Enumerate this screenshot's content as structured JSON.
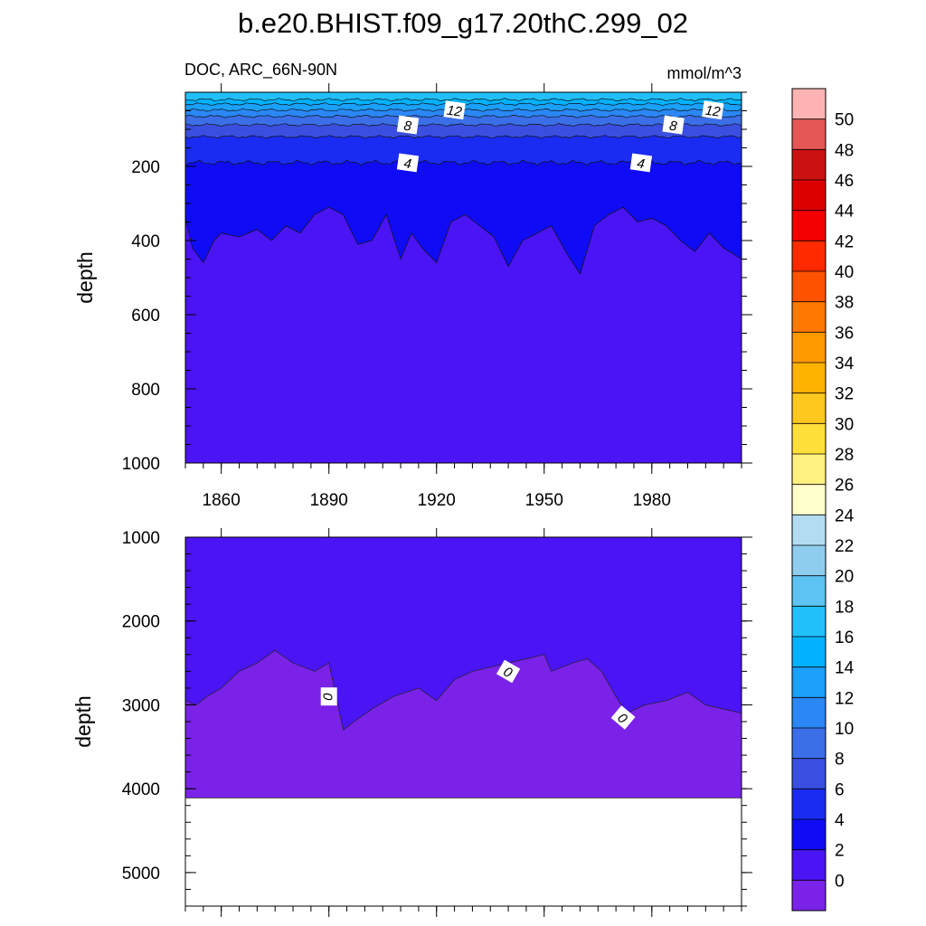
{
  "title": "b.e20.BHIST.f09_g17.20thC.299_02",
  "subtitle_left": "DOC, ARC_66N-90N",
  "subtitle_right": "mmol/m^3",
  "top_panel": {
    "ylabel": "depth",
    "ytick_labels": [
      "200",
      "400",
      "600",
      "800",
      "1000"
    ],
    "xtick_labels": [
      "1860",
      "1890",
      "1920",
      "1950",
      "1980"
    ],
    "contour_labels": [
      "12",
      "12",
      "8",
      "8",
      "4",
      "4"
    ]
  },
  "bottom_panel": {
    "ylabel": "depth",
    "ytick_labels": [
      "1000",
      "2000",
      "3000",
      "4000",
      "5000"
    ],
    "contour_labels": [
      "0",
      "0",
      "0"
    ]
  },
  "colorbar": {
    "labels": [
      "50",
      "48",
      "46",
      "44",
      "42",
      "40",
      "38",
      "36",
      "34",
      "32",
      "30",
      "28",
      "26",
      "24",
      "22",
      "20",
      "18",
      "16",
      "14",
      "12",
      "10",
      "8",
      "6",
      "4",
      "2",
      "0"
    ],
    "colors": [
      "#fdb3b3",
      "#e45757",
      "#cc1111",
      "#dd0000",
      "#f50000",
      "#ff2a00",
      "#ff5200",
      "#ff7800",
      "#ff9900",
      "#ffb300",
      "#ffc81e",
      "#ffe03a",
      "#fff080",
      "#ffffcc",
      "#b3dcf2",
      "#8fcdee",
      "#5cc3f2",
      "#22c0fa",
      "#00b2ff",
      "#1ba0fb",
      "#2a87f5",
      "#3b6fe8",
      "#3a4fe0",
      "#1a2cf2",
      "#0f0cf5",
      "#4a14f5",
      "#7a22e8"
    ]
  },
  "chart_data": [
    {
      "type": "heatmap",
      "title": "b.e20.BHIST.f09_g17.20thC.299_02",
      "subtitle": "DOC, ARC_66N-90N",
      "units": "mmol/m^3",
      "xlabel": "",
      "ylabel": "depth",
      "xlim": [
        1850,
        2005
      ],
      "ylim": [
        1000,
        0
      ],
      "x_ticks": [
        1860,
        1890,
        1920,
        1950,
        1980
      ],
      "y_ticks": [
        200,
        400,
        600,
        800,
        1000
      ],
      "contour_levels": [
        0,
        2,
        4,
        6,
        8,
        10,
        12,
        14,
        16
      ],
      "contour_depths": {
        "16": 20,
        "14": 32,
        "12": 48,
        "10": 65,
        "8": 88,
        "6": 120,
        "4": 190,
        "2": "~310-480"
      },
      "contour_2_depth_x": [
        1850,
        1852,
        1855,
        1858,
        1860,
        1865,
        1870,
        1874,
        1878,
        1882,
        1886,
        1890,
        1894,
        1898,
        1902,
        1906,
        1910,
        1913,
        1916,
        1920,
        1924,
        1928,
        1932,
        1936,
        1940,
        1944,
        1948,
        1952,
        1956,
        1960,
        1964,
        1968,
        1972,
        1976,
        1980,
        1984,
        1988,
        1992,
        1996,
        2000,
        2005
      ],
      "contour_2_depth_y": [
        340,
        420,
        460,
        400,
        380,
        390,
        370,
        400,
        360,
        380,
        330,
        310,
        330,
        410,
        400,
        330,
        450,
        380,
        420,
        460,
        350,
        330,
        360,
        390,
        470,
        400,
        380,
        360,
        430,
        490,
        360,
        330,
        310,
        350,
        340,
        360,
        400,
        430,
        380,
        420,
        450
      ]
    },
    {
      "type": "heatmap",
      "xlabel": "",
      "ylabel": "depth",
      "xlim": [
        1850,
        2005
      ],
      "ylim": [
        5400,
        1000
      ],
      "y_ticks": [
        1000,
        2000,
        3000,
        4000,
        5000
      ],
      "contour_levels": [
        0
      ],
      "data_bottom_depth": 4110,
      "contour_0_depth_x": [
        1850,
        1853,
        1856,
        1860,
        1865,
        1870,
        1875,
        1880,
        1883,
        1886,
        1890,
        1892,
        1894,
        1897,
        1902,
        1908,
        1915,
        1920,
        1925,
        1930,
        1935,
        1940,
        1945,
        1950,
        1952,
        1958,
        1962,
        1966,
        1970,
        1973,
        1978,
        1984,
        1990,
        1995,
        2000,
        2005
      ],
      "contour_0_depth_y": [
        2950,
        3000,
        2900,
        2800,
        2600,
        2500,
        2350,
        2500,
        2550,
        2600,
        2500,
        2900,
        3300,
        3200,
        3050,
        2900,
        2800,
        2950,
        2700,
        2600,
        2550,
        2500,
        2450,
        2400,
        2600,
        2500,
        2450,
        2600,
        2900,
        3100,
        3000,
        2950,
        2850,
        3000,
        3050,
        3100
      ]
    }
  ]
}
